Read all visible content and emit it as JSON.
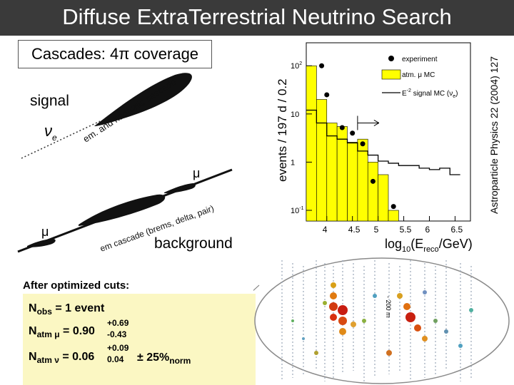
{
  "title": "Diffuse ExtraTerrestrial Neutrino Search",
  "subtitle": "Cascades: 4π coverage",
  "signal_label": "signal",
  "signal_nu": "ν",
  "signal_nu_sub": "e",
  "signal_cascade_text": "em. and hadronic cascade",
  "background_label": "background",
  "mu_label": "μ",
  "bg_cascade_text": "em cascade (brems, delta, pair)",
  "citation": "Astroparticle Physics 22 (2004) 127",
  "cuts": {
    "title": "After optimized cuts:",
    "nobs": "N",
    "nobs_sub": "obs",
    "nobs_value": " = 1 event",
    "natm_mu": "N",
    "natm_mu_sub": "atm μ",
    "natm_mu_value": " = 0.90",
    "natm_mu_plus": "+0.69",
    "natm_mu_minus": "-0.43",
    "natm_nu": "N",
    "natm_nu_sub": "atm ν",
    "natm_nu_value": " = 0.06",
    "natm_nu_plus": "+0.09",
    "natm_nu_minus": "0.04",
    "norm_unc": "± 25%",
    "norm_sub": "norm"
  },
  "chart_data": {
    "type": "bar",
    "ylabel": "events / 197 d / 0.2",
    "xlabel": "log10(Ereco/GeV)",
    "xlabel_main": "log",
    "xlabel_sub": "10",
    "xlabel_rest": "(E",
    "xlabel_sub2": "reco",
    "xlabel_end": "/GeV)",
    "x_ticks": [
      "4",
      "4.5",
      "5",
      "5.5",
      "6",
      "6.5"
    ],
    "y_ticks": [
      "10",
      "1",
      "10"
    ],
    "y_tick_exp": [
      "2",
      "",
      ""
    ],
    "y_tick_neg_exp": "-1",
    "y_scale": "log",
    "ylim": [
      0.06,
      300
    ],
    "xlim": [
      3.6,
      6.8
    ],
    "legend": [
      "experiment",
      "atm. μ MC",
      "E",
      "signal MC (ν",
      ")"
    ],
    "legend_sig_exp": "-2",
    "legend_sig_sub": "e",
    "legend_placement": "top-right",
    "atm_mu_mc": {
      "bin_edges": [
        3.6,
        3.8,
        4.0,
        4.2,
        4.4,
        4.6,
        4.8,
        5.0,
        5.2,
        5.4
      ],
      "values": [
        100,
        20,
        6.5,
        5.5,
        2.6,
        3.0,
        1.0,
        0.55,
        0.1
      ]
    },
    "signal_mc": {
      "bin_edges": [
        3.6,
        3.8,
        4.0,
        4.2,
        4.4,
        4.6,
        4.8,
        5.0,
        5.2,
        5.4,
        5.6,
        5.8,
        6.0,
        6.2,
        6.4,
        6.6
      ],
      "values": [
        12,
        6.5,
        3.5,
        3.0,
        2.5,
        1.7,
        1.4,
        1.05,
        0.95,
        0.85,
        0.85,
        0.75,
        0.7,
        0.75,
        0.55
      ]
    },
    "experiment": [
      {
        "x": 3.9,
        "y": 100
      },
      {
        "x": 4.0,
        "y": 25
      },
      {
        "x": 4.3,
        "y": 5.2
      },
      {
        "x": 4.5,
        "y": 4.0
      },
      {
        "x": 4.7,
        "y": 2.4
      },
      {
        "x": 4.9,
        "y": 0.4
      },
      {
        "x": 5.3,
        "y": 0.12
      }
    ],
    "cut_arrow_at": 4.6
  }
}
